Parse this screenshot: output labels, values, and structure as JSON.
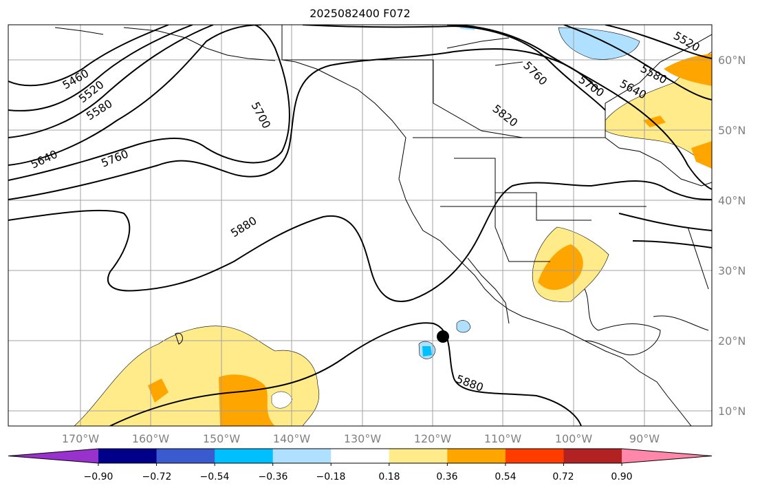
{
  "title": "2025082400 F072",
  "map": {
    "lon_labels": [
      "170°W",
      "160°W",
      "150°W",
      "140°W",
      "130°W",
      "120°W",
      "110°W",
      "100°W",
      "90°W"
    ],
    "lat_labels": [
      "60°N",
      "50°N",
      "40°N",
      "30°N",
      "20°N",
      "10°N"
    ],
    "contour_labels": [
      "5460",
      "5520",
      "5580",
      "5640",
      "5760",
      "5700",
      "5820",
      "5760",
      "5700",
      "5640",
      "5580",
      "5520",
      "5880",
      "5880"
    ]
  },
  "colorbar": {
    "colors": [
      "#9932cc",
      "#00008b",
      "#3a5bcf",
      "#00bfff",
      "#b0e0ff",
      "#ffffff",
      "#ffeb8a",
      "#ffa500",
      "#ff3c00",
      "#b22222",
      "#ff88aa"
    ],
    "tick_labels": [
      "−0.90",
      "−0.72",
      "−0.54",
      "−0.36",
      "−0.18",
      "0.18",
      "0.36",
      "0.54",
      "0.72",
      "0.90"
    ]
  }
}
